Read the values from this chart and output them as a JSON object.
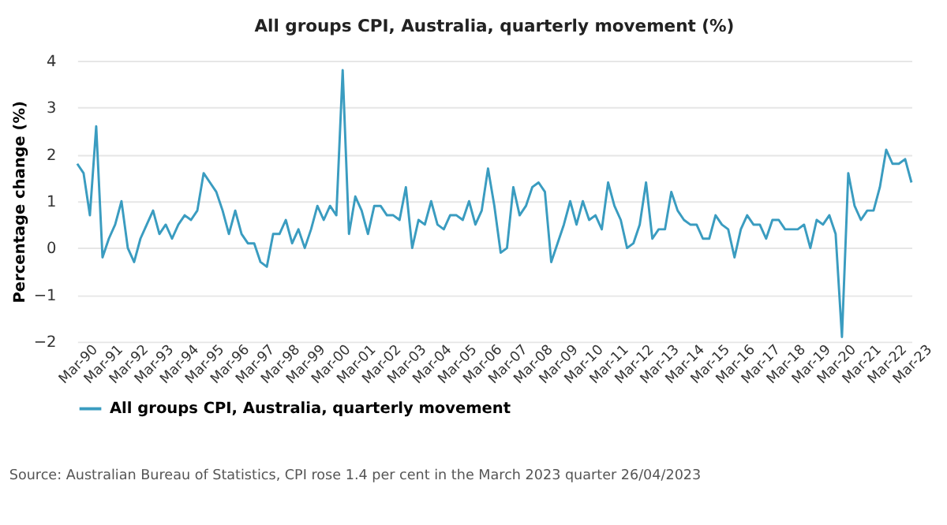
{
  "chart_data": {
    "type": "line",
    "title": "All groups CPI, Australia, quarterly movement (%)",
    "ylabel": "Percentage change (%)",
    "annotations": [
      "Source: Australian Bureau of Statistics, CPI rose 1.4 per cent in the March 2023 quarter 26/04/2023"
    ],
    "categories": [
      "Mar-90",
      null,
      null,
      null,
      "Mar-91",
      null,
      null,
      null,
      "Mar-92",
      null,
      null,
      null,
      "Mar-93",
      null,
      null,
      null,
      "Mar-94",
      null,
      null,
      null,
      "Mar-95",
      null,
      null,
      null,
      "Mar-96",
      null,
      null,
      null,
      "Mar-97",
      null,
      null,
      null,
      "Mar-98",
      null,
      null,
      null,
      "Mar-99",
      null,
      null,
      null,
      "Mar-00",
      null,
      null,
      null,
      "Mar-01",
      null,
      null,
      null,
      "Mar-02",
      null,
      null,
      null,
      "Mar-03",
      null,
      null,
      null,
      "Mar-04",
      null,
      null,
      null,
      "Mar-05",
      null,
      null,
      null,
      "Mar-06",
      null,
      null,
      null,
      "Mar-07",
      null,
      null,
      null,
      "Mar-08",
      null,
      null,
      null,
      "Mar-09",
      null,
      null,
      null,
      "Mar-10",
      null,
      null,
      null,
      "Mar-11",
      null,
      null,
      null,
      "Mar-12",
      null,
      null,
      null,
      "Mar-13",
      null,
      null,
      null,
      "Mar-14",
      null,
      null,
      null,
      "Mar-15",
      null,
      null,
      null,
      "Mar-16",
      null,
      null,
      null,
      "Mar-17",
      null,
      null,
      null,
      "Mar-18",
      null,
      null,
      null,
      "Mar-19",
      null,
      null,
      null,
      "Mar-20",
      null,
      null,
      null,
      "Mar-21",
      null,
      null,
      null,
      "Mar-22",
      null,
      null,
      null,
      "Mar-23"
    ],
    "series": [
      {
        "name": "All groups CPI, Australia, quarterly movement",
        "color": "#3a9cc0",
        "values": [
          1.8,
          1.6,
          0.7,
          2.6,
          -0.2,
          0.2,
          0.5,
          1.0,
          0.0,
          -0.3,
          0.2,
          0.5,
          0.8,
          0.3,
          0.5,
          0.2,
          0.5,
          0.7,
          0.6,
          0.8,
          1.6,
          1.4,
          1.2,
          0.8,
          0.3,
          0.8,
          0.3,
          0.1,
          0.1,
          -0.3,
          -0.4,
          0.3,
          0.3,
          0.6,
          0.1,
          0.4,
          0.0,
          0.4,
          0.9,
          0.6,
          0.9,
          0.7,
          3.8,
          0.3,
          1.1,
          0.8,
          0.3,
          0.9,
          0.9,
          0.7,
          0.7,
          0.6,
          1.3,
          0.0,
          0.6,
          0.5,
          1.0,
          0.5,
          0.4,
          0.7,
          0.7,
          0.6,
          1.0,
          0.5,
          0.8,
          1.7,
          0.9,
          -0.1,
          0.0,
          1.3,
          0.7,
          0.9,
          1.3,
          1.4,
          1.2,
          -0.3,
          0.1,
          0.5,
          1.0,
          0.5,
          1.0,
          0.6,
          0.7,
          0.4,
          1.4,
          0.9,
          0.6,
          0.0,
          0.1,
          0.5,
          1.4,
          0.2,
          0.4,
          0.4,
          1.2,
          0.8,
          0.6,
          0.5,
          0.5,
          0.2,
          0.2,
          0.7,
          0.5,
          0.4,
          -0.2,
          0.4,
          0.7,
          0.5,
          0.5,
          0.2,
          0.6,
          0.6,
          0.4,
          0.4,
          0.4,
          0.5,
          0.0,
          0.6,
          0.5,
          0.7,
          0.3,
          -1.9,
          1.6,
          0.9,
          0.6,
          0.8,
          0.8,
          1.3,
          2.1,
          1.8,
          1.8,
          1.9,
          1.4
        ]
      }
    ],
    "ylim": [
      -2,
      4
    ],
    "yticks": [
      -2,
      -1,
      0,
      1,
      2,
      3,
      4
    ],
    "grid": "y",
    "legend": "bottom",
    "marker": "none",
    "line_style": "solid"
  }
}
